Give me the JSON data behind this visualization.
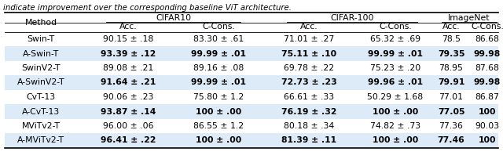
{
  "caption": "indicate improvement over the corresponding baseline ViT architecture.",
  "rows": [
    [
      "Swin-T",
      "90.15 ± .18",
      "83.30 ± .61",
      "71.01 ± .27",
      "65.32 ± .69",
      "78.5",
      "86.68"
    ],
    [
      "A-Swin-T",
      "93.39 ± .12",
      "99.99 ± .01",
      "75.11 ± .10",
      "99.99 ± .01",
      "79.35",
      "99.98"
    ],
    [
      "SwinV2-T",
      "89.08 ± .21",
      "89.16 ± .08",
      "69.78 ± .22",
      "75.23 ± .20",
      "78.95",
      "87.68"
    ],
    [
      "A-SwinV2-T",
      "91.64 ± .21",
      "99.99 ± .01",
      "72.73 ± .23",
      "99.96 ± .01",
      "79.91",
      "99.98"
    ],
    [
      "CvT-13",
      "90.06 ± .23",
      "75.80 ± 1.2",
      "66.61 ± .33",
      "50.29 ± 1.68",
      "77.01",
      "86.87"
    ],
    [
      "A-CvT-13",
      "93.87 ± .14",
      "100 ± .00",
      "76.19 ± .32",
      "100 ± .00",
      "77.05",
      "100"
    ],
    [
      "MViTv2-T",
      "96.00 ± .06",
      "86.55 ± 1.2",
      "80.18 ± .34",
      "74.82 ± .73",
      "77.36",
      "90.03"
    ],
    [
      "A-MViTv2-T",
      "96.41 ± .22",
      "100 ± .00",
      "81.39 ± .11",
      "100 ± .00",
      "77.46",
      "100"
    ]
  ],
  "bold_rows": [
    1,
    3,
    5,
    7
  ],
  "highlight_rows": [
    1,
    3,
    5,
    7
  ],
  "highlight_color": "#ddeaf7",
  "bg_color": "#ffffff",
  "font_size": 7.8
}
